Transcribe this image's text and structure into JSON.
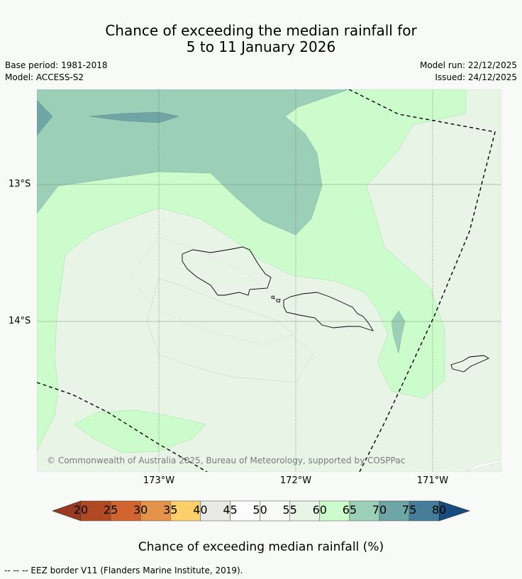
{
  "title": {
    "line1": "Chance of exceeding the median rainfall for",
    "line2": "5 to 11 January 2026"
  },
  "meta": {
    "base_period": "Base period: 1981-2018",
    "model": "Model: ACCESS-S2",
    "model_run": "Model run: 22/12/2025",
    "issued": "Issued: 24/12/2025"
  },
  "map": {
    "lat_labels": [
      "13°S",
      "14°S"
    ],
    "lon_labels": [
      "173°W",
      "172°W",
      "171°W"
    ],
    "copyright": "© Commonwealth of Australia 2025, Bureau of Meteorology, supported by COSPPac"
  },
  "colorbar": {
    "ticks": [
      "20",
      "25",
      "30",
      "35",
      "40",
      "45",
      "50",
      "55",
      "60",
      "65",
      "70",
      "75",
      "80"
    ],
    "colors": [
      "#b04a25",
      "#d06530",
      "#e4944a",
      "#fdcf6a",
      "#e9e9e5",
      "#fbfcfb",
      "#f9fbf9",
      "#e8f5e6",
      "#ccfccc",
      "#9ccfb8",
      "#70a5a5",
      "#457c98"
    ],
    "low_extend_color": "#9a3922",
    "high_extend_color": "#164c7e",
    "label": "Chance of exceeding median rainfall (%)"
  },
  "footnote": "--  --  -- EEZ border V11 (Flanders Marine Institute, 2019)."
}
